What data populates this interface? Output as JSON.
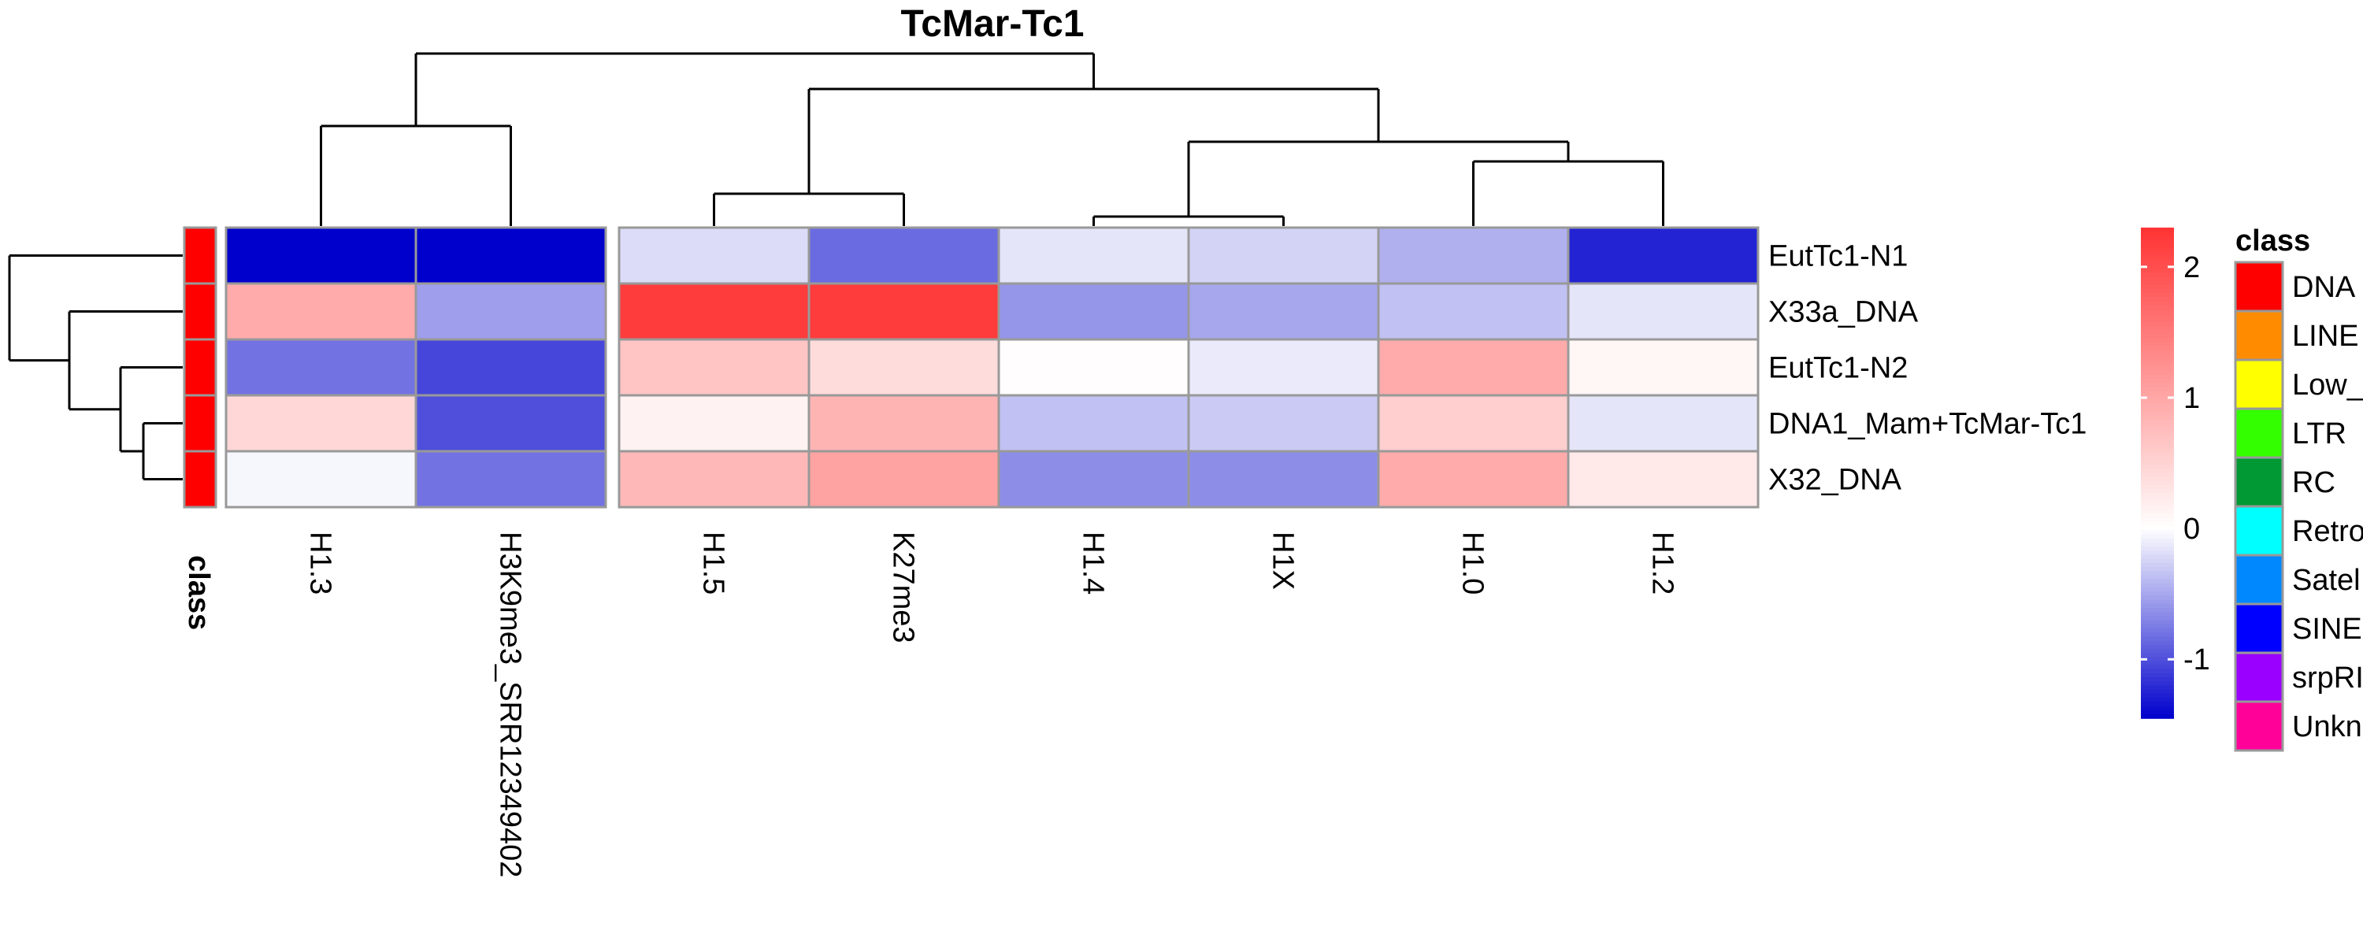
{
  "chart_data": {
    "type": "heatmap",
    "title": "TcMar-Tc1",
    "columns": [
      "H1.3",
      "H3K9me3_SRR12349402",
      "H1.5",
      "K27me3",
      "H1.4",
      "H1X",
      "H1.0",
      "H1.2"
    ],
    "rows": [
      "EutTc1-N1",
      "X33a_DNA",
      "EutTc1-N2",
      "DNA1_Mam+TcMar-Tc1",
      "X32_DNA"
    ],
    "values": [
      [
        -1.45,
        -1.45,
        -0.2,
        -0.85,
        -0.15,
        -0.25,
        -0.45,
        -1.25
      ],
      [
        0.95,
        -0.55,
        2.2,
        2.2,
        -0.6,
        -0.5,
        -0.35,
        -0.15
      ],
      [
        -0.8,
        -1.05,
        0.65,
        0.4,
        0.02,
        -0.12,
        0.95,
        0.1
      ],
      [
        0.45,
        -1.0,
        0.15,
        0.85,
        -0.35,
        -0.3,
        0.55,
        -0.15
      ],
      [
        -0.05,
        -0.8,
        0.8,
        1.05,
        -0.65,
        -0.65,
        0.95,
        0.25
      ]
    ],
    "row_class": [
      "DNA",
      "DNA",
      "DNA",
      "DNA",
      "DNA"
    ],
    "annotation_label": "class",
    "colorbar": {
      "range": [
        -1.45,
        2.3
      ],
      "ticks": [
        -1,
        0,
        1,
        2
      ],
      "tick_labels": [
        "-1",
        "0",
        "1",
        "2"
      ],
      "low_color": "#0000CC",
      "mid_color": "#FFFFFF",
      "high_color": "#FF3333"
    },
    "legend": {
      "title": "class",
      "placement": "right",
      "entries": [
        {
          "label": "DNA",
          "color": "#FF0000"
        },
        {
          "label": "LINE",
          "color": "#FF8C00"
        },
        {
          "label": "Low_",
          "color": "#FFFF00"
        },
        {
          "label": "LTR",
          "color": "#33FF00"
        },
        {
          "label": "RC",
          "color": "#009933"
        },
        {
          "label": "Retro",
          "color": "#00FFFF"
        },
        {
          "label": "Satel",
          "color": "#0088FF"
        },
        {
          "label": "SINE",
          "color": "#0000FF"
        },
        {
          "label": "srpRI",
          "color": "#9900FF"
        },
        {
          "label": "Unkn",
          "color": "#FF0099"
        }
      ]
    }
  }
}
